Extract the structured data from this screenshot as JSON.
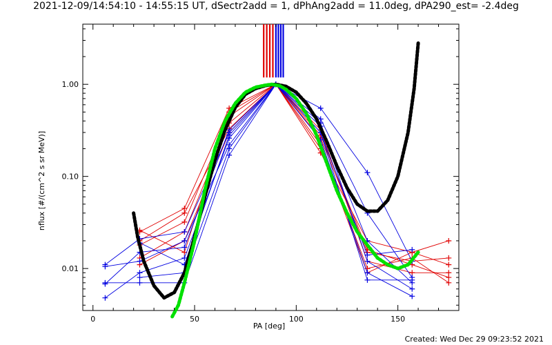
{
  "title": "2021-12-09/14:54:10 - 14:55:15 UT, dSectr2add = 1, dPhAng2add = 11.0deg, dPA290_est= -2.4deg",
  "footer": "Created: Wed Dec 29 09:23:52 2021",
  "chart_data": {
    "type": "line",
    "xlabel": "PA [deg]",
    "ylabel": "nflux [#/(cm^2 s sr MeV)]",
    "xlim": [
      -5,
      180
    ],
    "ylim": [
      0.0035,
      4.5
    ],
    "yscale": "log",
    "xticks": [
      0,
      50,
      100,
      150
    ],
    "xtick_labels": [
      "0",
      "50",
      "100",
      "150"
    ],
    "yticks": [
      0.01,
      0.1,
      1.0
    ],
    "ytick_labels": [
      "0.01",
      "0.10",
      "1.00"
    ],
    "grid": false,
    "colors": {
      "red": "#e00000",
      "blue": "#0000e0",
      "green": "#00e000",
      "black": "#000000"
    },
    "top_markers": {
      "red": [
        84,
        85.5,
        87,
        88.5
      ],
      "blue": [
        90,
        91.2,
        92.4,
        93.6
      ]
    },
    "series": [
      {
        "color": "red",
        "points": [
          [
            23,
            0.025
          ],
          [
            45,
            0.045
          ],
          [
            67,
            0.55
          ],
          [
            90,
            1.0
          ],
          [
            112,
            0.18
          ],
          [
            135,
            0.02
          ],
          [
            157,
            0.015
          ],
          [
            175,
            0.02
          ]
        ]
      },
      {
        "color": "red",
        "points": [
          [
            23,
            0.018
          ],
          [
            45,
            0.032
          ],
          [
            67,
            0.45
          ],
          [
            90,
            1.0
          ],
          [
            112,
            0.26
          ],
          [
            135,
            0.015
          ],
          [
            157,
            0.012
          ],
          [
            175,
            0.013
          ]
        ]
      },
      {
        "color": "red",
        "points": [
          [
            23,
            0.013
          ],
          [
            45,
            0.025
          ],
          [
            67,
            0.38
          ],
          [
            90,
            1.0
          ],
          [
            112,
            0.32
          ],
          [
            135,
            0.012
          ],
          [
            157,
            0.009
          ],
          [
            175,
            0.009
          ]
        ]
      },
      {
        "color": "red",
        "points": [
          [
            23,
            0.011
          ],
          [
            45,
            0.02
          ],
          [
            67,
            0.3
          ],
          [
            90,
            1.0
          ],
          [
            112,
            0.22
          ],
          [
            135,
            0.01
          ],
          [
            157,
            0.013
          ],
          [
            175,
            0.007
          ]
        ]
      },
      {
        "color": "red",
        "points": [
          [
            23,
            0.026
          ],
          [
            45,
            0.015
          ],
          [
            67,
            0.5
          ],
          [
            90,
            1.0
          ],
          [
            112,
            0.28
          ],
          [
            135,
            0.016
          ],
          [
            157,
            0.011
          ],
          [
            175,
            0.008
          ]
        ]
      },
      {
        "color": "red",
        "points": [
          [
            23,
            0.02
          ],
          [
            45,
            0.04
          ],
          [
            67,
            0.33
          ],
          [
            90,
            1.0
          ],
          [
            112,
            0.2
          ],
          [
            135,
            0.009
          ],
          [
            157,
            0.015
          ],
          [
            175,
            0.011
          ]
        ]
      },
      {
        "color": "blue",
        "points": [
          [
            6,
            0.011
          ],
          [
            23,
            0.021
          ],
          [
            45,
            0.025
          ],
          [
            67,
            0.3
          ],
          [
            90,
            1.0
          ],
          [
            112,
            0.55
          ],
          [
            135,
            0.11
          ],
          [
            157,
            0.012
          ]
        ]
      },
      {
        "color": "blue",
        "points": [
          [
            6,
            0.007
          ],
          [
            23,
            0.007
          ],
          [
            45,
            0.007
          ],
          [
            67,
            0.17
          ],
          [
            90,
            1.0
          ],
          [
            112,
            0.25
          ],
          [
            135,
            0.009
          ],
          [
            157,
            0.005
          ]
        ]
      },
      {
        "color": "blue",
        "points": [
          [
            6,
            0.0105
          ],
          [
            23,
            0.012
          ],
          [
            45,
            0.02
          ],
          [
            67,
            0.22
          ],
          [
            90,
            1.0
          ],
          [
            112,
            0.42
          ],
          [
            135,
            0.04
          ],
          [
            157,
            0.008
          ]
        ]
      },
      {
        "color": "blue",
        "points": [
          [
            6,
            0.0048
          ],
          [
            23,
            0.009
          ],
          [
            45,
            0.013
          ],
          [
            67,
            0.26
          ],
          [
            90,
            1.0
          ],
          [
            112,
            0.35
          ],
          [
            135,
            0.02
          ],
          [
            157,
            0.007
          ]
        ]
      },
      {
        "color": "blue",
        "points": [
          [
            6,
            0.0068
          ],
          [
            23,
            0.015
          ],
          [
            45,
            0.017
          ],
          [
            67,
            0.32
          ],
          [
            90,
            1.0
          ],
          [
            112,
            0.3
          ],
          [
            135,
            0.0075
          ],
          [
            157,
            0.0075
          ]
        ]
      },
      {
        "color": "blue",
        "points": [
          [
            23,
            0.019
          ],
          [
            45,
            0.011
          ],
          [
            67,
            0.28
          ],
          [
            90,
            1.0
          ],
          [
            112,
            0.38
          ],
          [
            135,
            0.012
          ],
          [
            157,
            0.006
          ]
        ]
      },
      {
        "color": "blue",
        "points": [
          [
            23,
            0.008
          ],
          [
            45,
            0.009
          ],
          [
            67,
            0.2
          ],
          [
            90,
            1.0
          ],
          [
            112,
            0.3
          ],
          [
            135,
            0.014
          ],
          [
            157,
            0.016
          ]
        ]
      }
    ],
    "fits": [
      {
        "color": "black",
        "points": [
          [
            20,
            0.04
          ],
          [
            22,
            0.022
          ],
          [
            25,
            0.012
          ],
          [
            30,
            0.0065
          ],
          [
            35,
            0.0048
          ],
          [
            40,
            0.0055
          ],
          [
            45,
            0.009
          ],
          [
            50,
            0.022
          ],
          [
            55,
            0.06
          ],
          [
            60,
            0.15
          ],
          [
            65,
            0.32
          ],
          [
            70,
            0.56
          ],
          [
            75,
            0.78
          ],
          [
            80,
            0.9
          ],
          [
            85,
            0.97
          ],
          [
            90,
            1.0
          ],
          [
            95,
            0.95
          ],
          [
            100,
            0.82
          ],
          [
            105,
            0.62
          ],
          [
            110,
            0.42
          ],
          [
            115,
            0.24
          ],
          [
            120,
            0.13
          ],
          [
            125,
            0.075
          ],
          [
            130,
            0.05
          ],
          [
            135,
            0.042
          ],
          [
            140,
            0.042
          ],
          [
            145,
            0.055
          ],
          [
            150,
            0.1
          ],
          [
            155,
            0.3
          ],
          [
            158,
            0.9
          ],
          [
            160,
            2.8
          ]
        ]
      },
      {
        "color": "green",
        "points": [
          [
            39,
            0.003
          ],
          [
            42,
            0.004
          ],
          [
            45,
            0.007
          ],
          [
            50,
            0.02
          ],
          [
            55,
            0.07
          ],
          [
            60,
            0.2
          ],
          [
            65,
            0.4
          ],
          [
            70,
            0.62
          ],
          [
            75,
            0.82
          ],
          [
            80,
            0.93
          ],
          [
            85,
            0.98
          ],
          [
            88,
            1.0
          ],
          [
            92,
            0.96
          ],
          [
            95,
            0.88
          ],
          [
            100,
            0.7
          ],
          [
            105,
            0.48
          ],
          [
            110,
            0.28
          ],
          [
            115,
            0.14
          ],
          [
            120,
            0.07
          ],
          [
            125,
            0.04
          ],
          [
            130,
            0.025
          ],
          [
            135,
            0.018
          ],
          [
            140,
            0.013
          ],
          [
            145,
            0.011
          ],
          [
            150,
            0.01
          ],
          [
            155,
            0.011
          ],
          [
            160,
            0.015
          ]
        ]
      }
    ]
  }
}
